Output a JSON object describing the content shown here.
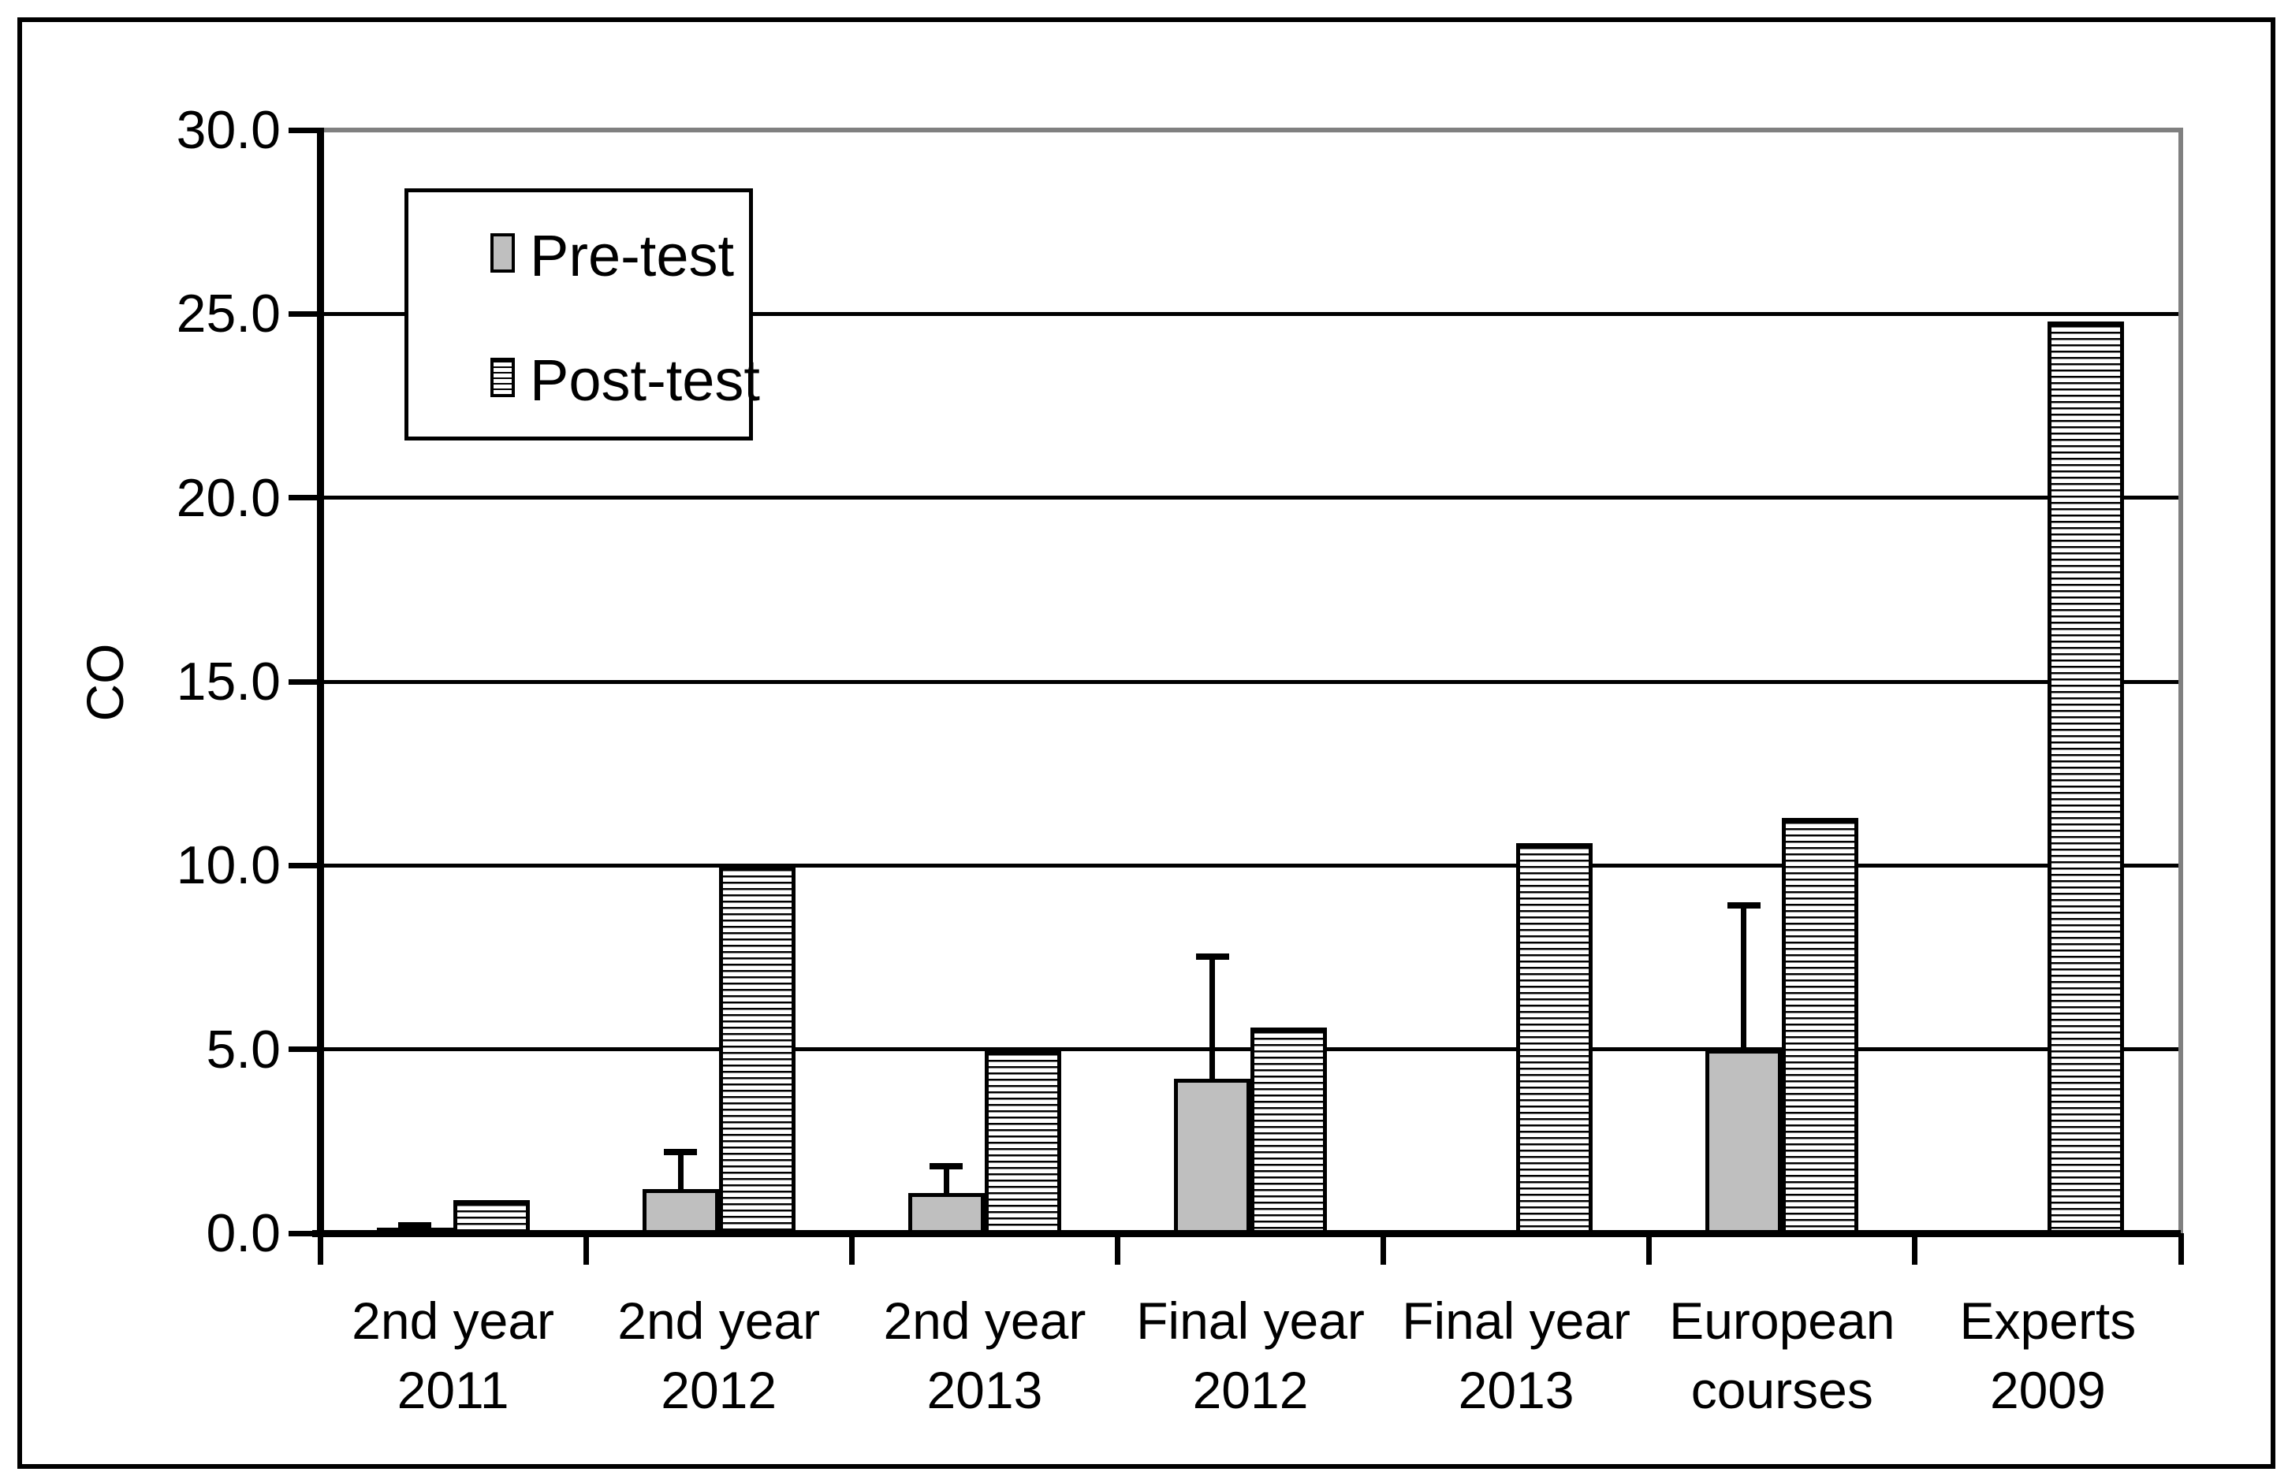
{
  "figure": {
    "y_axis_title": "CO",
    "legend": {
      "pre_label": "Pre-test",
      "post_label": "Post-test"
    },
    "colors": {
      "background": "#ffffff",
      "outer_border": "#000000",
      "gridline": "#000000",
      "plot_frame_gray": "#808080",
      "pre_test_fill": "#bfbfbf",
      "post_test_pattern": "horizontal-black-stripes-on-white",
      "bar_border": "#000000"
    }
  },
  "chart_data": {
    "type": "bar",
    "title": "",
    "xlabel": "",
    "ylabel": "CO",
    "ylim": [
      0,
      30
    ],
    "ytick_step": 5.0,
    "ytick_labels": [
      "0.0",
      "5.0",
      "10.0",
      "15.0",
      "20.0",
      "25.0",
      "30.0"
    ],
    "grid": true,
    "legend_position": "inside-top-left",
    "categories": [
      {
        "line1": "2nd year",
        "line2": "2011"
      },
      {
        "line1": "2nd year",
        "line2": "2012"
      },
      {
        "line1": "2nd year",
        "line2": "2013"
      },
      {
        "line1": "Final year",
        "line2": "2012"
      },
      {
        "line1": "Final year",
        "line2": "2013"
      },
      {
        "line1": "European",
        "line2": "courses"
      },
      {
        "line1": "Experts",
        "line2": "2009"
      }
    ],
    "series": [
      {
        "name": "Pre-test",
        "style": "gray-solid",
        "values": [
          0.15,
          1.2,
          1.1,
          4.2,
          null,
          5.0,
          null
        ],
        "error_bar_top_values": [
          0.3,
          2.3,
          1.9,
          7.6,
          null,
          9.0,
          null
        ]
      },
      {
        "name": "Post-test",
        "style": "horizontal-stripes",
        "values": [
          0.9,
          10.0,
          5.0,
          5.6,
          10.6,
          11.3,
          24.8
        ],
        "error_bar_top_values": [
          null,
          null,
          null,
          null,
          null,
          null,
          null
        ]
      }
    ]
  }
}
